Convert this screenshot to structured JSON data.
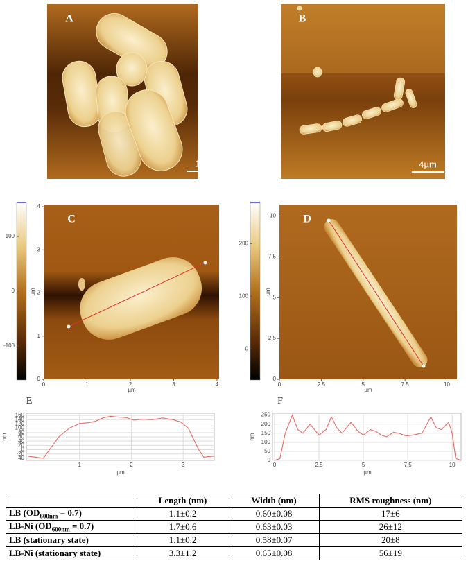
{
  "panels": {
    "A": {
      "label": "A",
      "scale_bar": "1µm"
    },
    "B": {
      "label": "B",
      "scale_bar": "4µm"
    },
    "C": {
      "label": "C",
      "x_label": "µm",
      "y_label": "µm",
      "xlim": [
        0,
        4.05
      ],
      "ylim": [
        0,
        4.05
      ],
      "xticks": [
        0,
        1,
        2,
        3,
        4
      ],
      "yticks": [
        0,
        1,
        2,
        3,
        4
      ],
      "colorbar_lim": [
        -162,
        162
      ],
      "colorbar_ticks": [
        100,
        0,
        -100
      ]
    },
    "D": {
      "label": "D",
      "x_label": "µm",
      "y_label": "µm",
      "xlim": [
        0,
        10.6
      ],
      "ylim": [
        0,
        10.7
      ],
      "xticks": [
        0,
        2.5,
        5,
        7.5,
        10
      ],
      "yticks": [
        0,
        2.5,
        5,
        7.5,
        10
      ],
      "colorbar_lim": [
        -59,
        278
      ],
      "colorbar_ticks": [
        200,
        100,
        0
      ]
    },
    "E": {
      "type": "line",
      "label": "E",
      "x_label": "µm",
      "y_label": "nm",
      "color": "#e8736c",
      "xlim": [
        0,
        3.6
      ],
      "ylim": [
        -50,
        170
      ],
      "xticks": [
        1,
        2,
        3
      ],
      "yticks": [
        160,
        140,
        120,
        100,
        80,
        60,
        40,
        20,
        0,
        -20,
        -40
      ],
      "x": [
        0,
        0.15,
        0.3,
        0.45,
        0.6,
        0.8,
        1.0,
        1.15,
        1.3,
        1.45,
        1.6,
        1.75,
        1.9,
        2.05,
        2.2,
        2.4,
        2.6,
        2.8,
        2.95,
        3.1,
        3.2,
        3.3,
        3.4,
        3.5,
        3.6
      ],
      "values": [
        -30,
        -35,
        -40,
        10,
        60,
        100,
        122,
        125,
        132,
        148,
        156,
        152,
        150,
        138,
        142,
        140,
        148,
        140,
        130,
        100,
        50,
        0,
        -35,
        -32,
        -30
      ]
    },
    "F": {
      "type": "line",
      "label": "F",
      "x_label": "µm",
      "y_label": "nm",
      "color": "#e8736c",
      "xlim": [
        0,
        10.5
      ],
      "ylim": [
        0,
        260
      ],
      "xticks": [
        0,
        2.5,
        5,
        7.5,
        10
      ],
      "yticks": [
        250,
        200,
        150,
        100,
        50,
        0
      ],
      "x": [
        0,
        0.3,
        0.6,
        1.0,
        1.3,
        1.6,
        2.0,
        2.5,
        2.9,
        3.2,
        3.5,
        3.8,
        4.3,
        4.7,
        5.0,
        5.4,
        5.7,
        6.0,
        6.3,
        6.7,
        7.0,
        7.4,
        7.8,
        8.3,
        8.8,
        9.1,
        9.4,
        9.8,
        10.0,
        10.2,
        10.5
      ],
      "values": [
        0,
        10,
        150,
        250,
        170,
        150,
        200,
        140,
        170,
        240,
        180,
        150,
        210,
        160,
        140,
        170,
        160,
        140,
        130,
        155,
        150,
        135,
        140,
        150,
        240,
        180,
        170,
        210,
        150,
        10,
        0
      ]
    }
  },
  "table": {
    "columns": [
      "Length (nm)",
      "Width (nm)",
      "RMS roughness (nm)"
    ],
    "rows": [
      {
        "label": {
          "pre": "LB (OD",
          "sub": "600nm",
          "post": " = 0.7)"
        },
        "cells": [
          "1.1±0.2",
          "0.60±0.08",
          "17±6"
        ]
      },
      {
        "label": {
          "pre": "LB-Ni (OD",
          "sub": "600nm",
          "post": " = 0.7)"
        },
        "cells": [
          "1.7±0.6",
          "0.63±0.03",
          "26±12"
        ]
      },
      {
        "label": {
          "pre": "LB (stationary state)"
        },
        "cells": [
          "1.1±0.2",
          "0.58±0.07",
          "20±8"
        ]
      },
      {
        "label": {
          "pre": "LB-Ni (stationary state)"
        },
        "cells": [
          "3.3±1.2",
          "0.65±0.08",
          "56±19"
        ]
      }
    ]
  }
}
